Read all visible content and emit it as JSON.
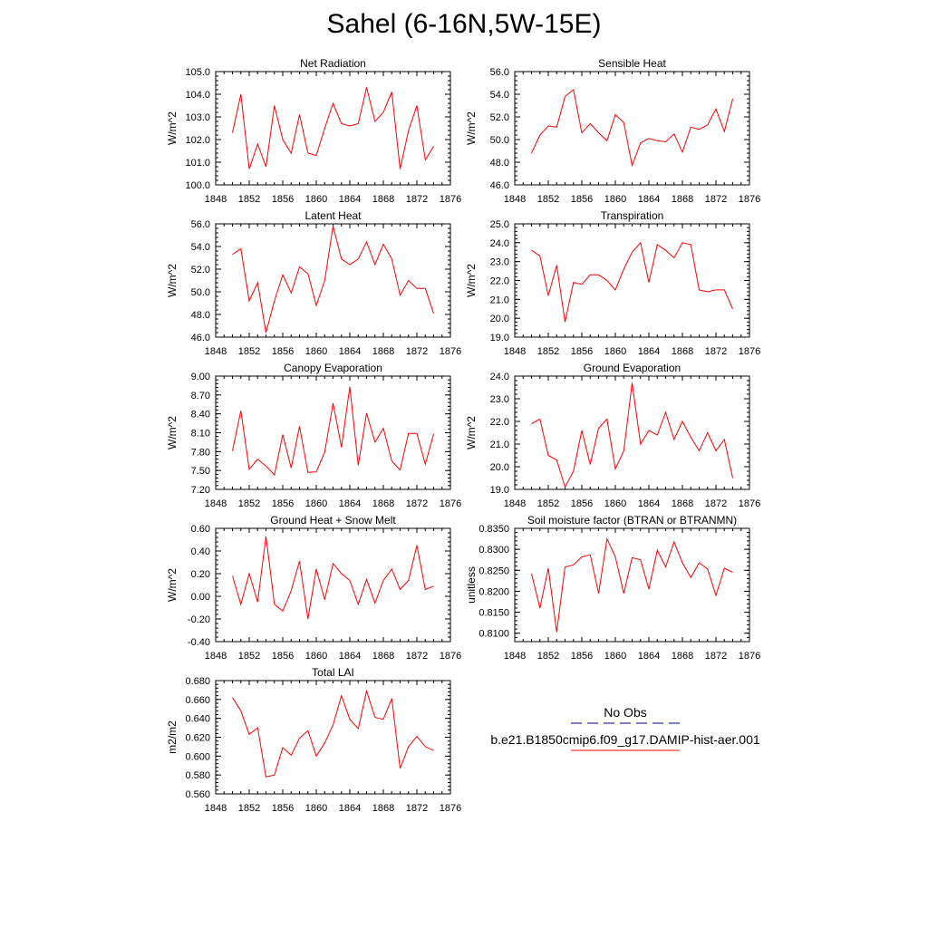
{
  "title": "Sahel (6-16N,5W-15E)",
  "colors": {
    "model_line": "#ff0000",
    "obs_line": "#000080",
    "axis": "#000000"
  },
  "legend": {
    "obs_label": "No Obs",
    "model_label": "b.e21.B1850cmip6.f09_g17.DAMIP-hist-aer.001"
  },
  "chart_data": [
    {
      "type": "line",
      "title": "Net Radiation",
      "ylabel": "W/m^2",
      "xlim": [
        1848,
        1876
      ],
      "xticks": [
        1848,
        1852,
        1856,
        1860,
        1864,
        1868,
        1872,
        1876
      ],
      "ylim": [
        100.0,
        105.0
      ],
      "yticks": [
        100.0,
        101.0,
        102.0,
        103.0,
        104.0,
        105.0
      ],
      "ytick_decimals": 1,
      "x": [
        1850,
        1851,
        1852,
        1853,
        1854,
        1855,
        1856,
        1857,
        1858,
        1859,
        1860,
        1861,
        1862,
        1863,
        1864,
        1865,
        1866,
        1867,
        1868,
        1869,
        1870,
        1871,
        1872,
        1873,
        1874
      ],
      "series": [
        {
          "values": [
            102.3,
            104.0,
            100.7,
            101.8,
            100.8,
            103.5,
            102.0,
            101.4,
            103.1,
            101.4,
            101.3,
            102.5,
            103.6,
            102.7,
            102.6,
            102.7,
            104.3,
            102.8,
            103.2,
            104.1,
            100.7,
            102.4,
            103.5,
            101.1,
            101.7
          ]
        }
      ]
    },
    {
      "type": "line",
      "title": "Sensible Heat",
      "ylabel": "W/m^2",
      "xlim": [
        1848,
        1876
      ],
      "xticks": [
        1848,
        1852,
        1856,
        1860,
        1864,
        1868,
        1872,
        1876
      ],
      "ylim": [
        46.0,
        56.0
      ],
      "yticks": [
        46.0,
        48.0,
        50.0,
        52.0,
        54.0,
        56.0
      ],
      "ytick_decimals": 1,
      "x": [
        1850,
        1851,
        1852,
        1853,
        1854,
        1855,
        1856,
        1857,
        1858,
        1859,
        1860,
        1861,
        1862,
        1863,
        1864,
        1865,
        1866,
        1867,
        1868,
        1869,
        1870,
        1871,
        1872,
        1873,
        1874
      ],
      "series": [
        {
          "values": [
            48.8,
            50.4,
            51.2,
            51.1,
            53.8,
            54.4,
            50.6,
            51.4,
            50.6,
            49.9,
            52.2,
            51.5,
            47.7,
            49.7,
            50.1,
            49.9,
            49.8,
            50.5,
            48.9,
            51.1,
            50.9,
            51.3,
            52.7,
            50.7,
            53.6
          ]
        }
      ]
    },
    {
      "type": "line",
      "title": "Latent Heat",
      "ylabel": "W/m^2",
      "xlim": [
        1848,
        1876
      ],
      "xticks": [
        1848,
        1852,
        1856,
        1860,
        1864,
        1868,
        1872,
        1876
      ],
      "ylim": [
        46.0,
        56.0
      ],
      "yticks": [
        46.0,
        48.0,
        50.0,
        52.0,
        54.0,
        56.0
      ],
      "ytick_decimals": 1,
      "x": [
        1850,
        1851,
        1852,
        1853,
        1854,
        1855,
        1856,
        1857,
        1858,
        1859,
        1860,
        1861,
        1862,
        1863,
        1864,
        1865,
        1866,
        1867,
        1868,
        1869,
        1870,
        1871,
        1872,
        1873,
        1874
      ],
      "series": [
        {
          "values": [
            53.3,
            53.8,
            49.2,
            50.8,
            46.4,
            49.2,
            51.5,
            49.9,
            52.2,
            51.6,
            48.8,
            51.0,
            55.8,
            52.9,
            52.4,
            52.9,
            54.4,
            52.4,
            54.2,
            52.9,
            49.7,
            51.0,
            50.3,
            50.3,
            48.1
          ]
        }
      ]
    },
    {
      "type": "line",
      "title": "Transpiration",
      "ylabel": "W/m^2",
      "xlim": [
        1848,
        1876
      ],
      "xticks": [
        1848,
        1852,
        1856,
        1860,
        1864,
        1868,
        1872,
        1876
      ],
      "ylim": [
        19.0,
        25.0
      ],
      "yticks": [
        19.0,
        20.0,
        21.0,
        22.0,
        23.0,
        24.0,
        25.0
      ],
      "ytick_decimals": 1,
      "x": [
        1850,
        1851,
        1852,
        1853,
        1854,
        1855,
        1856,
        1857,
        1858,
        1859,
        1860,
        1861,
        1862,
        1863,
        1864,
        1865,
        1866,
        1867,
        1868,
        1869,
        1870,
        1871,
        1872,
        1873,
        1874
      ],
      "series": [
        {
          "values": [
            23.6,
            23.3,
            21.2,
            22.8,
            19.8,
            21.9,
            21.8,
            22.3,
            22.3,
            22.0,
            21.5,
            22.6,
            23.5,
            24.0,
            21.9,
            23.9,
            23.6,
            23.2,
            24.0,
            23.9,
            21.5,
            21.4,
            21.5,
            21.5,
            20.5
          ]
        }
      ]
    },
    {
      "type": "line",
      "title": "Canopy Evaporation",
      "ylabel": "W/m^2",
      "xlim": [
        1848,
        1876
      ],
      "xticks": [
        1848,
        1852,
        1856,
        1860,
        1864,
        1868,
        1872,
        1876
      ],
      "ylim": [
        7.2,
        9.0
      ],
      "yticks": [
        7.2,
        7.5,
        7.8,
        8.1,
        8.4,
        8.7,
        9.0
      ],
      "ytick_decimals": 2,
      "x": [
        1850,
        1851,
        1852,
        1853,
        1854,
        1855,
        1856,
        1857,
        1858,
        1859,
        1860,
        1861,
        1862,
        1863,
        1864,
        1865,
        1866,
        1867,
        1868,
        1869,
        1870,
        1871,
        1872,
        1873,
        1874
      ],
      "series": [
        {
          "values": [
            7.81,
            8.45,
            7.52,
            7.68,
            7.57,
            7.43,
            8.07,
            7.54,
            8.2,
            7.47,
            7.48,
            7.79,
            8.57,
            7.87,
            8.83,
            7.58,
            8.41,
            7.95,
            8.17,
            7.65,
            7.51,
            8.09,
            8.09,
            7.6,
            8.08
          ]
        }
      ]
    },
    {
      "type": "line",
      "title": "Ground Evaporation",
      "ylabel": "W/m^2",
      "xlim": [
        1848,
        1876
      ],
      "xticks": [
        1848,
        1852,
        1856,
        1860,
        1864,
        1868,
        1872,
        1876
      ],
      "ylim": [
        19.0,
        24.0
      ],
      "yticks": [
        19.0,
        20.0,
        21.0,
        22.0,
        23.0,
        24.0
      ],
      "ytick_decimals": 1,
      "x": [
        1850,
        1851,
        1852,
        1853,
        1854,
        1855,
        1856,
        1857,
        1858,
        1859,
        1860,
        1861,
        1862,
        1863,
        1864,
        1865,
        1866,
        1867,
        1868,
        1869,
        1870,
        1871,
        1872,
        1873,
        1874
      ],
      "series": [
        {
          "values": [
            21.9,
            22.1,
            20.5,
            20.3,
            19.1,
            19.8,
            21.6,
            20.1,
            21.7,
            22.1,
            19.9,
            20.7,
            23.7,
            21.0,
            21.6,
            21.4,
            22.4,
            21.2,
            22.0,
            21.3,
            20.7,
            21.5,
            20.7,
            21.2,
            19.5
          ]
        }
      ]
    },
    {
      "type": "line",
      "title": "Ground Heat + Snow Melt",
      "ylabel": "W/m^2",
      "xlim": [
        1848,
        1876
      ],
      "xticks": [
        1848,
        1852,
        1856,
        1860,
        1864,
        1868,
        1872,
        1876
      ],
      "ylim": [
        -0.4,
        0.6
      ],
      "yticks": [
        -0.4,
        -0.2,
        0.0,
        0.2,
        0.4,
        0.6
      ],
      "ytick_decimals": 2,
      "x": [
        1850,
        1851,
        1852,
        1853,
        1854,
        1855,
        1856,
        1857,
        1858,
        1859,
        1860,
        1861,
        1862,
        1863,
        1864,
        1865,
        1866,
        1867,
        1868,
        1869,
        1870,
        1871,
        1872,
        1873,
        1874
      ],
      "series": [
        {
          "values": [
            0.18,
            -0.07,
            0.2,
            -0.05,
            0.53,
            -0.07,
            -0.13,
            0.05,
            0.31,
            -0.2,
            0.24,
            -0.03,
            0.29,
            0.2,
            0.14,
            -0.07,
            0.15,
            -0.06,
            0.14,
            0.24,
            0.06,
            0.14,
            0.45,
            0.06,
            0.09
          ]
        }
      ]
    },
    {
      "type": "line",
      "title": "Soil moisture factor (BTRAN or BTRANMN)",
      "ylabel": "unitless",
      "xlim": [
        1848,
        1876
      ],
      "xticks": [
        1848,
        1852,
        1856,
        1860,
        1864,
        1868,
        1872,
        1876
      ],
      "ylim": [
        0.808,
        0.835
      ],
      "yticks": [
        0.81,
        0.815,
        0.82,
        0.825,
        0.83,
        0.835
      ],
      "ytick_decimals": 4,
      "x": [
        1850,
        1851,
        1852,
        1853,
        1854,
        1855,
        1856,
        1857,
        1858,
        1859,
        1860,
        1861,
        1862,
        1863,
        1864,
        1865,
        1866,
        1867,
        1868,
        1869,
        1870,
        1871,
        1872,
        1873,
        1874
      ],
      "series": [
        {
          "values": [
            0.8242,
            0.816,
            0.8255,
            0.8103,
            0.8258,
            0.8263,
            0.8282,
            0.8287,
            0.8195,
            0.8325,
            0.8282,
            0.8195,
            0.828,
            0.8275,
            0.8205,
            0.8298,
            0.8258,
            0.8318,
            0.8268,
            0.8233,
            0.8268,
            0.8253,
            0.819,
            0.8255,
            0.8245
          ]
        }
      ]
    },
    {
      "type": "line",
      "title": "Total LAI",
      "ylabel": "m2/m2",
      "xlim": [
        1848,
        1876
      ],
      "xticks": [
        1848,
        1852,
        1856,
        1860,
        1864,
        1868,
        1872,
        1876
      ],
      "ylim": [
        0.56,
        0.68
      ],
      "yticks": [
        0.56,
        0.58,
        0.6,
        0.62,
        0.64,
        0.66,
        0.68
      ],
      "ytick_decimals": 3,
      "x": [
        1850,
        1851,
        1852,
        1853,
        1854,
        1855,
        1856,
        1857,
        1858,
        1859,
        1860,
        1861,
        1862,
        1863,
        1864,
        1865,
        1866,
        1867,
        1868,
        1869,
        1870,
        1871,
        1872,
        1873,
        1874
      ],
      "series": [
        {
          "values": [
            0.662,
            0.648,
            0.623,
            0.63,
            0.578,
            0.58,
            0.609,
            0.601,
            0.619,
            0.627,
            0.6,
            0.614,
            0.633,
            0.664,
            0.639,
            0.629,
            0.669,
            0.641,
            0.639,
            0.661,
            0.587,
            0.61,
            0.621,
            0.61,
            0.606
          ]
        }
      ]
    }
  ]
}
